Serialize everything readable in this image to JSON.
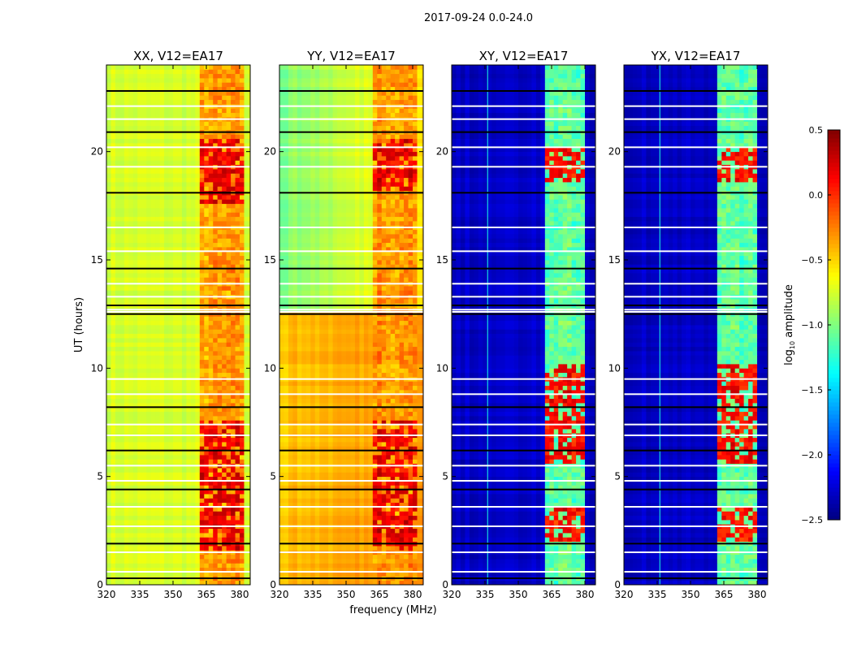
{
  "chart_data": {
    "type": "heatmap",
    "title": "2017-09-24 0.0-24.0",
    "xlabel": "frequency (MHz)",
    "ylabel": "UT (hours)",
    "xlim": [
      320,
      384.75
    ],
    "ylim": [
      0,
      24
    ],
    "xticks": [
      "320",
      "335",
      "350",
      "365",
      "380"
    ],
    "xtick_values": [
      320,
      335,
      350,
      365,
      380
    ],
    "yticks": [
      "0",
      "5",
      "10",
      "15",
      "20"
    ],
    "ytick_values": [
      0,
      5,
      10,
      15,
      20
    ],
    "colorbar": {
      "label": "log10 amplitude",
      "label_main": "log",
      "label_sub": "10",
      "label_rest": " amplitude",
      "colormap": "jet",
      "range": [
        -2.5,
        0.5
      ],
      "ticks": [
        "0.5",
        "0.0",
        "−0.5",
        "−1.0",
        "−1.5",
        "−2.0",
        "−2.5"
      ],
      "tick_values": [
        0.5,
        0.0,
        -0.5,
        -1.0,
        -1.5,
        -2.0,
        -2.5
      ]
    },
    "flagged_hours": [
      0.3,
      0.6,
      1.5,
      1.9,
      2.7,
      3.6,
      4.4,
      4.8,
      5.5,
      6.2,
      6.9,
      7.4,
      8.2,
      8.8,
      9.5,
      12.5,
      12.6,
      12.7,
      12.9,
      13.3,
      13.9,
      14.6,
      15.4,
      16.5,
      18.1,
      19.3,
      20.2,
      20.9,
      21.5,
      22.1,
      22.8
    ],
    "panels": [
      {
        "title": "XX, V12=EA17",
        "base_low": -0.75,
        "base_high": -0.75,
        "band": [
          363,
          381
        ],
        "band_level": -0.35,
        "peak_level": 0.15,
        "peak_hours": [
          [
            1.5,
            7.5
          ],
          [
            17.5,
            20.5
          ]
        ],
        "line_freq": null
      },
      {
        "title": "YY, V12=EA17",
        "base_low": -0.45,
        "base_high": -1.0,
        "band": [
          363,
          381
        ],
        "band_level": -0.3,
        "peak_level": 0.2,
        "peak_hours": [
          [
            1.5,
            7.5
          ],
          [
            18,
            20.5
          ]
        ],
        "line_freq": null
      },
      {
        "title": "XY, V12=EA17",
        "base_low": -2.3,
        "base_high": -2.3,
        "band": [
          362,
          380
        ],
        "band_level": -1.1,
        "peak_level": 0.1,
        "peak_hours": [
          [
            1.8,
            3.6
          ],
          [
            5.5,
            10
          ],
          [
            18.5,
            20
          ]
        ],
        "line_freq": 336
      },
      {
        "title": "YX, V12=EA17",
        "base_low": -2.3,
        "base_high": -2.3,
        "band": [
          362,
          380
        ],
        "band_level": -1.1,
        "peak_level": 0.1,
        "peak_hours": [
          [
            1.8,
            3.6
          ],
          [
            5.5,
            10
          ],
          [
            18.5,
            20
          ]
        ],
        "line_freq": 336
      }
    ]
  }
}
